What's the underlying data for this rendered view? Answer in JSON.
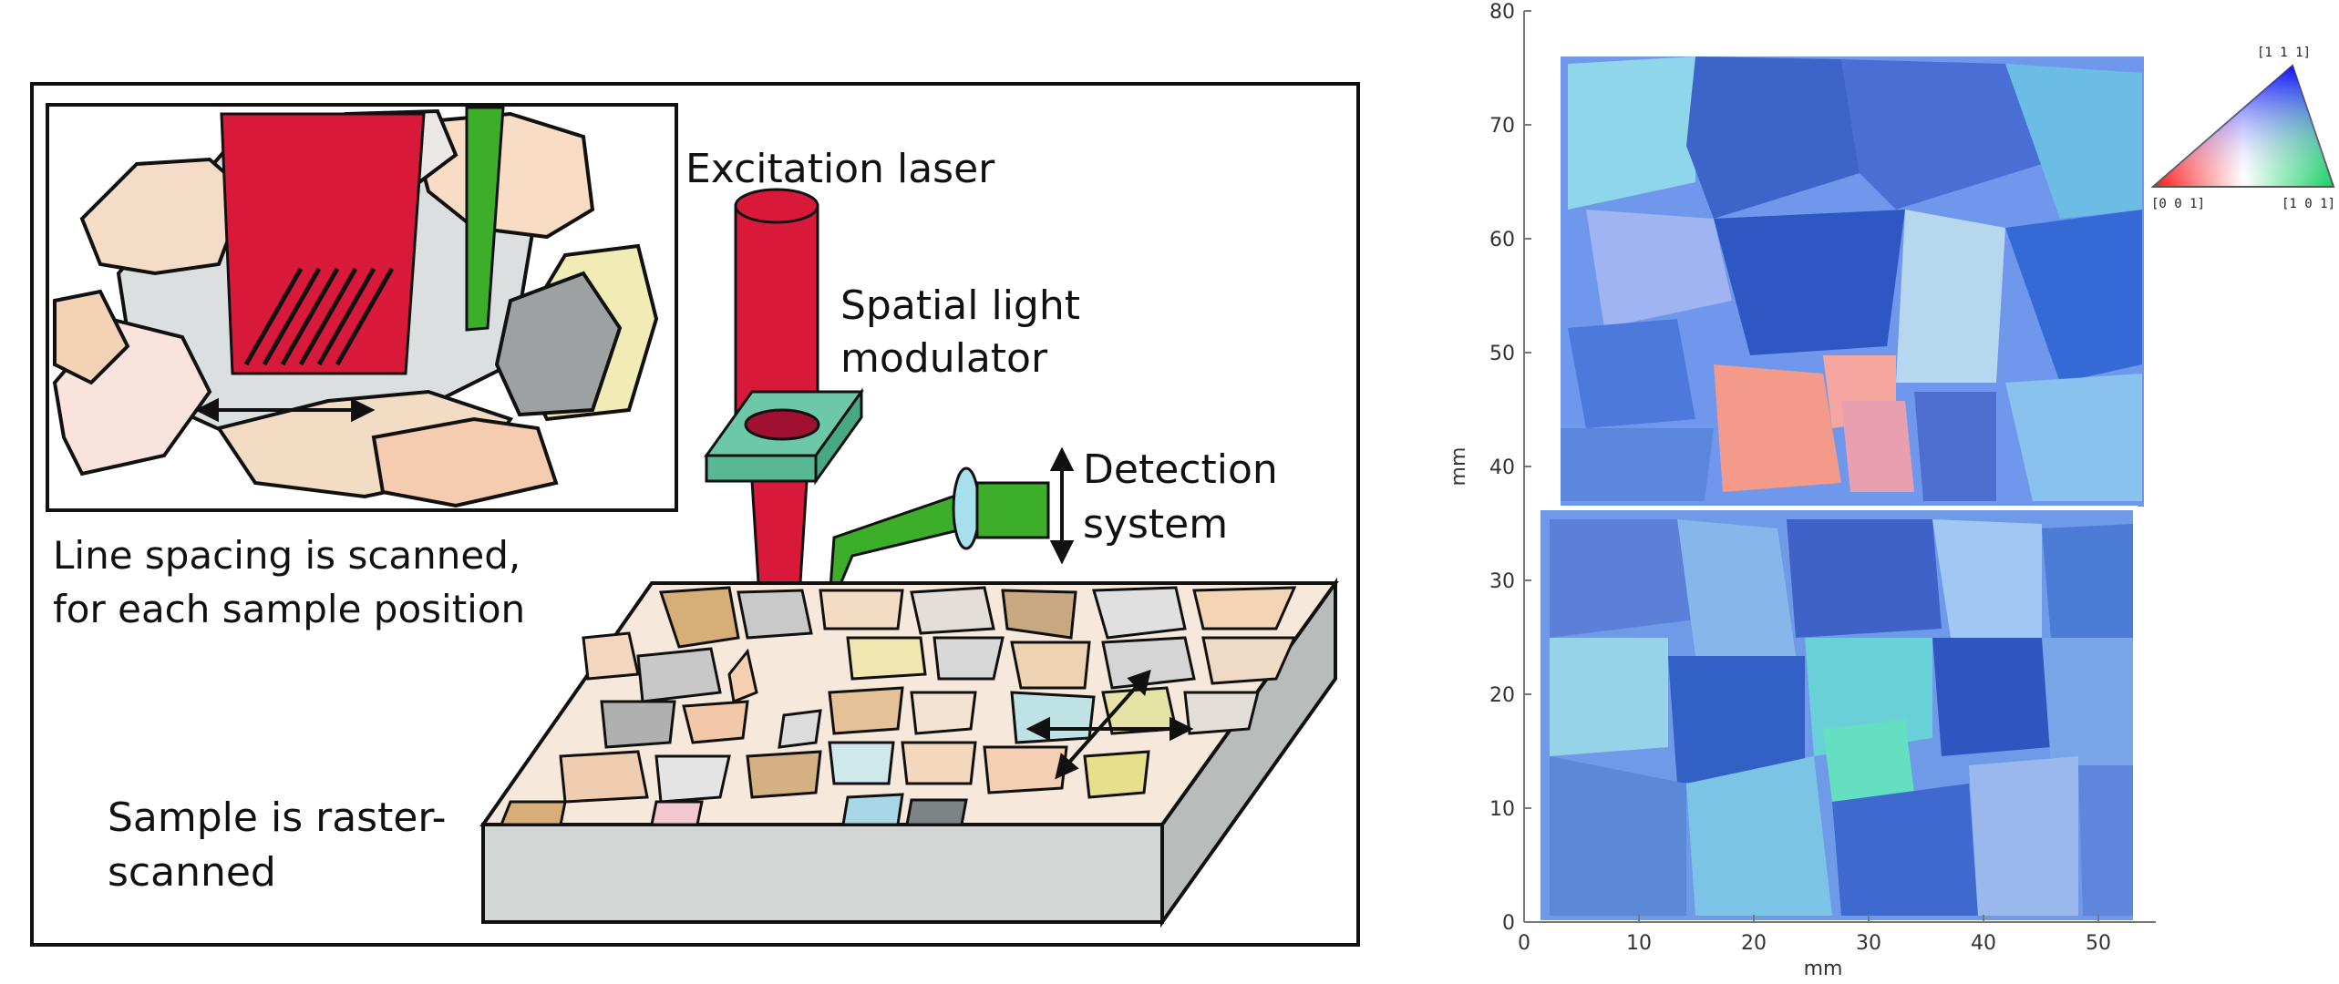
{
  "schematic": {
    "labels": {
      "excitation_laser": "Excitation laser",
      "slm_line1": "Spatial light",
      "slm_line2": "modulator",
      "detection_line1": "Detection",
      "detection_line2": "system",
      "line_spacing_line1": "Line spacing is scanned,",
      "line_spacing_line2": "for each sample position",
      "sample_line1": "Sample is raster-",
      "sample_line2": "scanned"
    },
    "colors": {
      "laser": "#d9193a",
      "detection": "#3cae2a",
      "slm": "#6cc8a8",
      "frame": "#111111",
      "sample_side": "#d2d6d4"
    }
  },
  "orientation_map": {
    "x_axis": {
      "label": "mm",
      "ticks": [
        "0",
        "10",
        "20",
        "30",
        "40",
        "50"
      ],
      "range": [
        0,
        55
      ]
    },
    "y_axis": {
      "label": "mm",
      "ticks": [
        "0",
        "10",
        "20",
        "30",
        "40",
        "50",
        "60",
        "70",
        "80"
      ],
      "range": [
        0,
        80
      ]
    },
    "color_key": {
      "top_label": "[1 1 1]",
      "left_label": "[0 0 1]",
      "right_label": "[1 0 1]"
    }
  }
}
